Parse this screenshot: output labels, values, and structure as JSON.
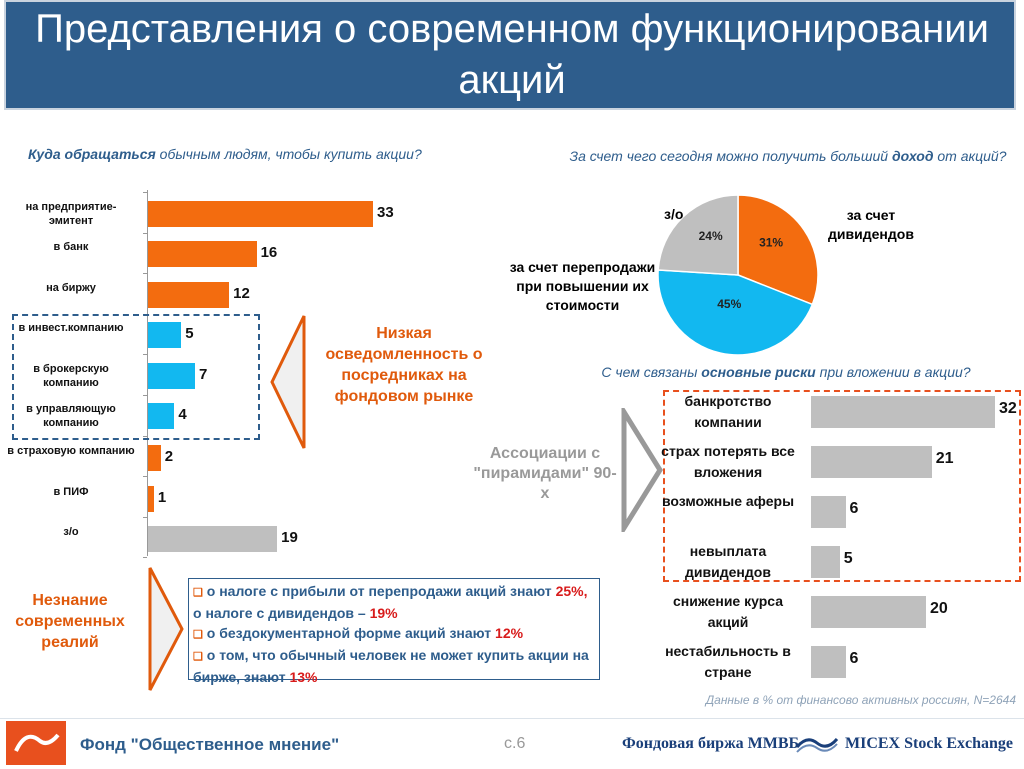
{
  "title": "Представления о современном функционировании акций",
  "left_question": {
    "bold": "Куда обращаться",
    "rest": " обычным людям, чтобы  купить акции?"
  },
  "pie_question": {
    "pre": "За счет чего сегодня можно получить больший ",
    "bold": "доход",
    "post": " от акций?"
  },
  "risk_question": {
    "pre": "С чем связаны ",
    "bold": "основные риски",
    "post": " при вложении в акции?"
  },
  "pie_labels": {
    "other": "з/о",
    "dividends": "за счет дивидендов",
    "resale": "за счет перепродажи при повышении их стоимости"
  },
  "low_awareness": "Низкая осведомленность о посредниках на фондовом рынке",
  "pyramids": "Ассоциации с \"пирамидами\" 90-х",
  "ignorance": "Незнание современных реалий",
  "notes": [
    {
      "a": "о налоге с прибыли от перепродажи акций знают ",
      "b": "25%,",
      "c": " о налоге с дивидендов – ",
      "d": "19%"
    },
    {
      "a": "о бездокументарной форме акций знают ",
      "b": "12%"
    },
    {
      "a": "о том, что обычный человек не может купить акции на бирже, знают ",
      "b": "13%"
    }
  ],
  "source_note": "Данные в % от финансово активных россиян, N=2644",
  "footer": {
    "org": "Фонд \"Общественное мнение\"",
    "page": "с.6",
    "exchange": "Фондовая биржа ММВБ",
    "micex": "MICEX Stock Exchange"
  },
  "colors": {
    "orange": "#f36c0f",
    "cyan": "#12b8f0",
    "gray": "#bfbfbf",
    "blue": "#2e5d8c",
    "red": "#d81b1b"
  },
  "chart_data": [
    {
      "type": "bar",
      "orientation": "horizontal",
      "categories": [
        "на предприятие-эмитент",
        "в банк",
        "на биржу",
        "в инвест.компанию",
        "в брокерскую компанию",
        "в управляющую компанию",
        "в страховую компанию",
        "в ПИФ",
        "з/о"
      ],
      "values": [
        33,
        16,
        12,
        5,
        7,
        4,
        2,
        1,
        19
      ],
      "bar_colors": [
        "orange",
        "orange",
        "orange",
        "cyan",
        "cyan",
        "cyan",
        "orange",
        "orange",
        "gray"
      ],
      "xlim": [
        0,
        45
      ]
    },
    {
      "type": "pie",
      "labels": [
        "за счет дивидендов",
        "за счет перепродажи при повышении их стоимости",
        "з/о"
      ],
      "values": [
        31,
        45,
        24
      ],
      "value_labels": [
        "31%",
        "45%",
        "24%"
      ],
      "slice_colors": [
        "orange",
        "cyan",
        "gray"
      ]
    },
    {
      "type": "bar",
      "orientation": "horizontal",
      "categories": [
        "банкротство компании",
        "страх потерять все вложения",
        "возможные аферы",
        "невыплата дивидендов",
        "снижение курса акций",
        "нестабильность в стране"
      ],
      "values": [
        32,
        21,
        6,
        5,
        20,
        6
      ],
      "bar_colors": [
        "gray",
        "gray",
        "gray",
        "gray",
        "gray",
        "gray"
      ],
      "xlim": [
        0,
        35
      ]
    }
  ]
}
